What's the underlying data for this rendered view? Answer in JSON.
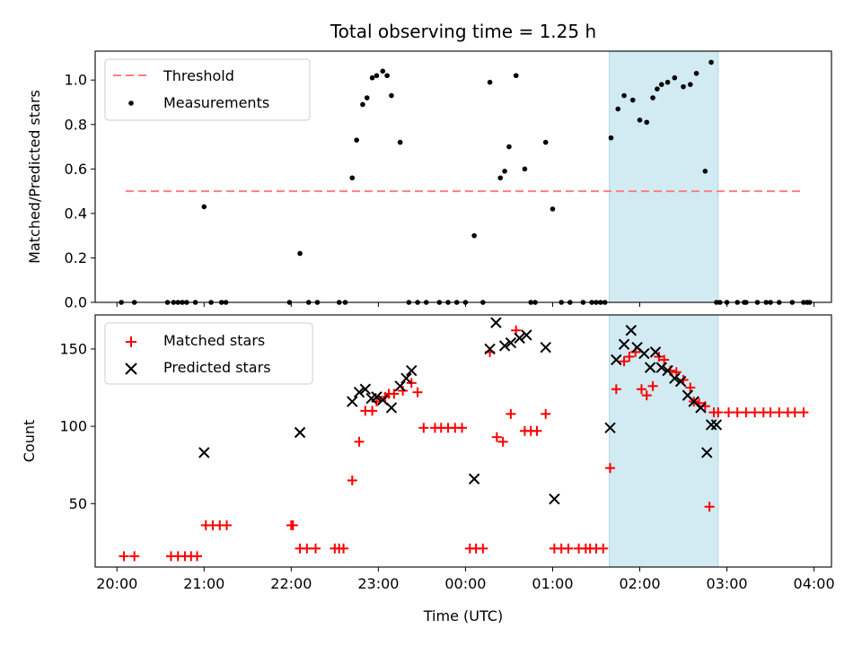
{
  "chart_data": [
    {
      "type": "scatter",
      "title": "Total observing time = 1.25 h",
      "xlabel": "",
      "ylabel": "Matched/Predicted stars",
      "xlim": [
        19.75,
        28.2
      ],
      "ylim": [
        0,
        1.13
      ],
      "yticks": [
        0.0,
        0.2,
        0.4,
        0.6,
        0.8,
        1.0
      ],
      "ytick_labels": [
        "0.0",
        "0.2",
        "0.4",
        "0.6",
        "0.8",
        "1.0"
      ],
      "legend": [
        "Threshold",
        "Measurements"
      ],
      "legend_position": "upper-left",
      "highlight_span": [
        25.65,
        26.9
      ],
      "threshold": {
        "name": "Threshold",
        "value": 0.5,
        "x": [
          20.1,
          27.85
        ]
      },
      "series": [
        {
          "name": "Measurements",
          "x": [
            20.05,
            20.2,
            20.58,
            20.65,
            20.7,
            20.75,
            20.8,
            20.9,
            21.0,
            21.08,
            21.2,
            21.25,
            21.98,
            22.1,
            22.2,
            22.3,
            22.55,
            22.62,
            22.7,
            22.75,
            22.82,
            22.87,
            22.93,
            22.98,
            23.05,
            23.1,
            23.15,
            23.25,
            23.35,
            23.45,
            23.55,
            23.7,
            23.8,
            23.9,
            24.0,
            24.1,
            24.2,
            24.28,
            24.4,
            24.45,
            24.5,
            24.58,
            24.68,
            24.75,
            24.8,
            24.92,
            25.0,
            25.1,
            25.2,
            25.35,
            25.45,
            25.5,
            25.55,
            25.6,
            25.67,
            25.75,
            25.82,
            25.92,
            26.0,
            26.08,
            26.15,
            26.2,
            26.25,
            26.32,
            26.4,
            26.5,
            26.58,
            26.65,
            26.75,
            26.82,
            26.88,
            26.92,
            27.0,
            27.12,
            27.2,
            27.22,
            27.35,
            27.45,
            27.5,
            27.6,
            27.75,
            27.88,
            27.92,
            27.95
          ],
          "y": [
            0.0,
            0.0,
            0.0,
            0.0,
            0.0,
            0.0,
            0.0,
            0.0,
            0.43,
            0.0,
            0.0,
            0.0,
            0.0,
            0.22,
            0.0,
            0.0,
            0.0,
            0.0,
            0.56,
            0.73,
            0.89,
            0.92,
            1.01,
            1.02,
            1.04,
            1.02,
            0.93,
            0.72,
            0.0,
            0.0,
            0.0,
            0.0,
            0.0,
            0.0,
            0.0,
            0.3,
            0.0,
            0.99,
            0.56,
            0.59,
            0.7,
            1.02,
            0.6,
            0.0,
            0.0,
            0.72,
            0.42,
            0.0,
            0.0,
            0.0,
            0.0,
            0.0,
            0.0,
            0.0,
            0.74,
            0.87,
            0.93,
            0.91,
            0.82,
            0.81,
            0.92,
            0.96,
            0.98,
            0.99,
            1.01,
            0.97,
            0.98,
            1.03,
            0.59,
            1.08,
            0.0,
            0.0,
            0.0,
            0.0,
            0.0,
            0.0,
            0.0,
            0.0,
            0.0,
            0.0,
            0.0,
            0.0,
            0.0,
            0.0
          ]
        }
      ]
    },
    {
      "type": "scatter",
      "title": "",
      "xlabel": "Time (UTC)",
      "ylabel": "Count",
      "xlim": [
        19.75,
        28.2
      ],
      "ylim": [
        9,
        172
      ],
      "yticks": [
        50,
        100,
        150
      ],
      "ytick_labels": [
        "50",
        "100",
        "150"
      ],
      "xticks": [
        20,
        21,
        22,
        23,
        24,
        25,
        26,
        27,
        28
      ],
      "xtick_labels": [
        "20:00",
        "21:00",
        "22:00",
        "23:00",
        "00:00",
        "01:00",
        "02:00",
        "03:00",
        "04:00"
      ],
      "legend": [
        "Matched stars",
        "Predicted stars"
      ],
      "legend_position": "upper-left",
      "highlight_span": [
        25.65,
        26.9
      ],
      "series": [
        {
          "name": "Matched stars",
          "marker": "plus",
          "color": "#ff0000",
          "x": [
            20.08,
            20.2,
            20.62,
            20.7,
            20.78,
            20.85,
            20.92,
            21.02,
            21.1,
            21.18,
            21.26,
            22.0,
            22.02,
            22.1,
            22.18,
            22.28,
            22.5,
            22.55,
            22.6,
            22.7,
            22.78,
            22.85,
            22.93,
            22.98,
            23.08,
            23.12,
            23.18,
            23.28,
            23.38,
            23.45,
            23.52,
            23.65,
            23.72,
            23.8,
            23.88,
            23.96,
            24.05,
            24.12,
            24.2,
            24.28,
            24.36,
            24.43,
            24.52,
            24.58,
            24.68,
            24.75,
            24.82,
            24.92,
            25.02,
            25.1,
            25.18,
            25.3,
            25.38,
            25.43,
            25.5,
            25.58,
            25.66,
            25.73,
            25.82,
            25.88,
            25.95,
            26.02,
            26.08,
            26.15,
            26.22,
            26.28,
            26.35,
            26.42,
            26.5,
            26.58,
            26.62,
            26.68,
            26.75,
            26.8,
            26.85,
            26.9,
            27.02,
            27.12,
            27.22,
            27.32,
            27.42,
            27.5,
            27.6,
            27.7,
            27.78,
            27.88
          ],
          "y": [
            16,
            16,
            16,
            16,
            16,
            16,
            16,
            36,
            36,
            36,
            36,
            36,
            36,
            21,
            21,
            21,
            21,
            21,
            21,
            65,
            90,
            110,
            110,
            116,
            119,
            121,
            121,
            123,
            128,
            122,
            99,
            99,
            99,
            99,
            99,
            99,
            21,
            21,
            21,
            148,
            93,
            90,
            108,
            162,
            97,
            97,
            97,
            108,
            21,
            21,
            21,
            21,
            21,
            21,
            21,
            21,
            73,
            124,
            142,
            145,
            148,
            124,
            120,
            126,
            145,
            143,
            136,
            135,
            130,
            125,
            116,
            115,
            113,
            48,
            109,
            109,
            109,
            109,
            109,
            109,
            109,
            109,
            109,
            109,
            109,
            109
          ]
        },
        {
          "name": "Predicted stars",
          "marker": "x",
          "color": "#000000",
          "x": [
            21.0,
            22.1,
            22.7,
            22.78,
            22.85,
            22.92,
            22.98,
            23.05,
            23.15,
            23.25,
            23.32,
            23.38,
            24.1,
            24.28,
            24.35,
            24.45,
            24.52,
            24.62,
            24.7,
            24.92,
            25.02,
            25.66,
            25.73,
            25.82,
            25.9,
            25.97,
            26.05,
            26.12,
            26.18,
            26.25,
            26.32,
            26.4,
            26.47,
            26.55,
            26.62,
            26.7,
            26.77,
            26.82,
            26.88
          ],
          "y": [
            83,
            96,
            116,
            122,
            124,
            118,
            119,
            117,
            112,
            126,
            131,
            136,
            66,
            150,
            167,
            152,
            154,
            157,
            159,
            151,
            53,
            99,
            143,
            153,
            162,
            151,
            147,
            138,
            148,
            138,
            136,
            131,
            129,
            120,
            116,
            112,
            83,
            101,
            101
          ]
        }
      ]
    }
  ]
}
